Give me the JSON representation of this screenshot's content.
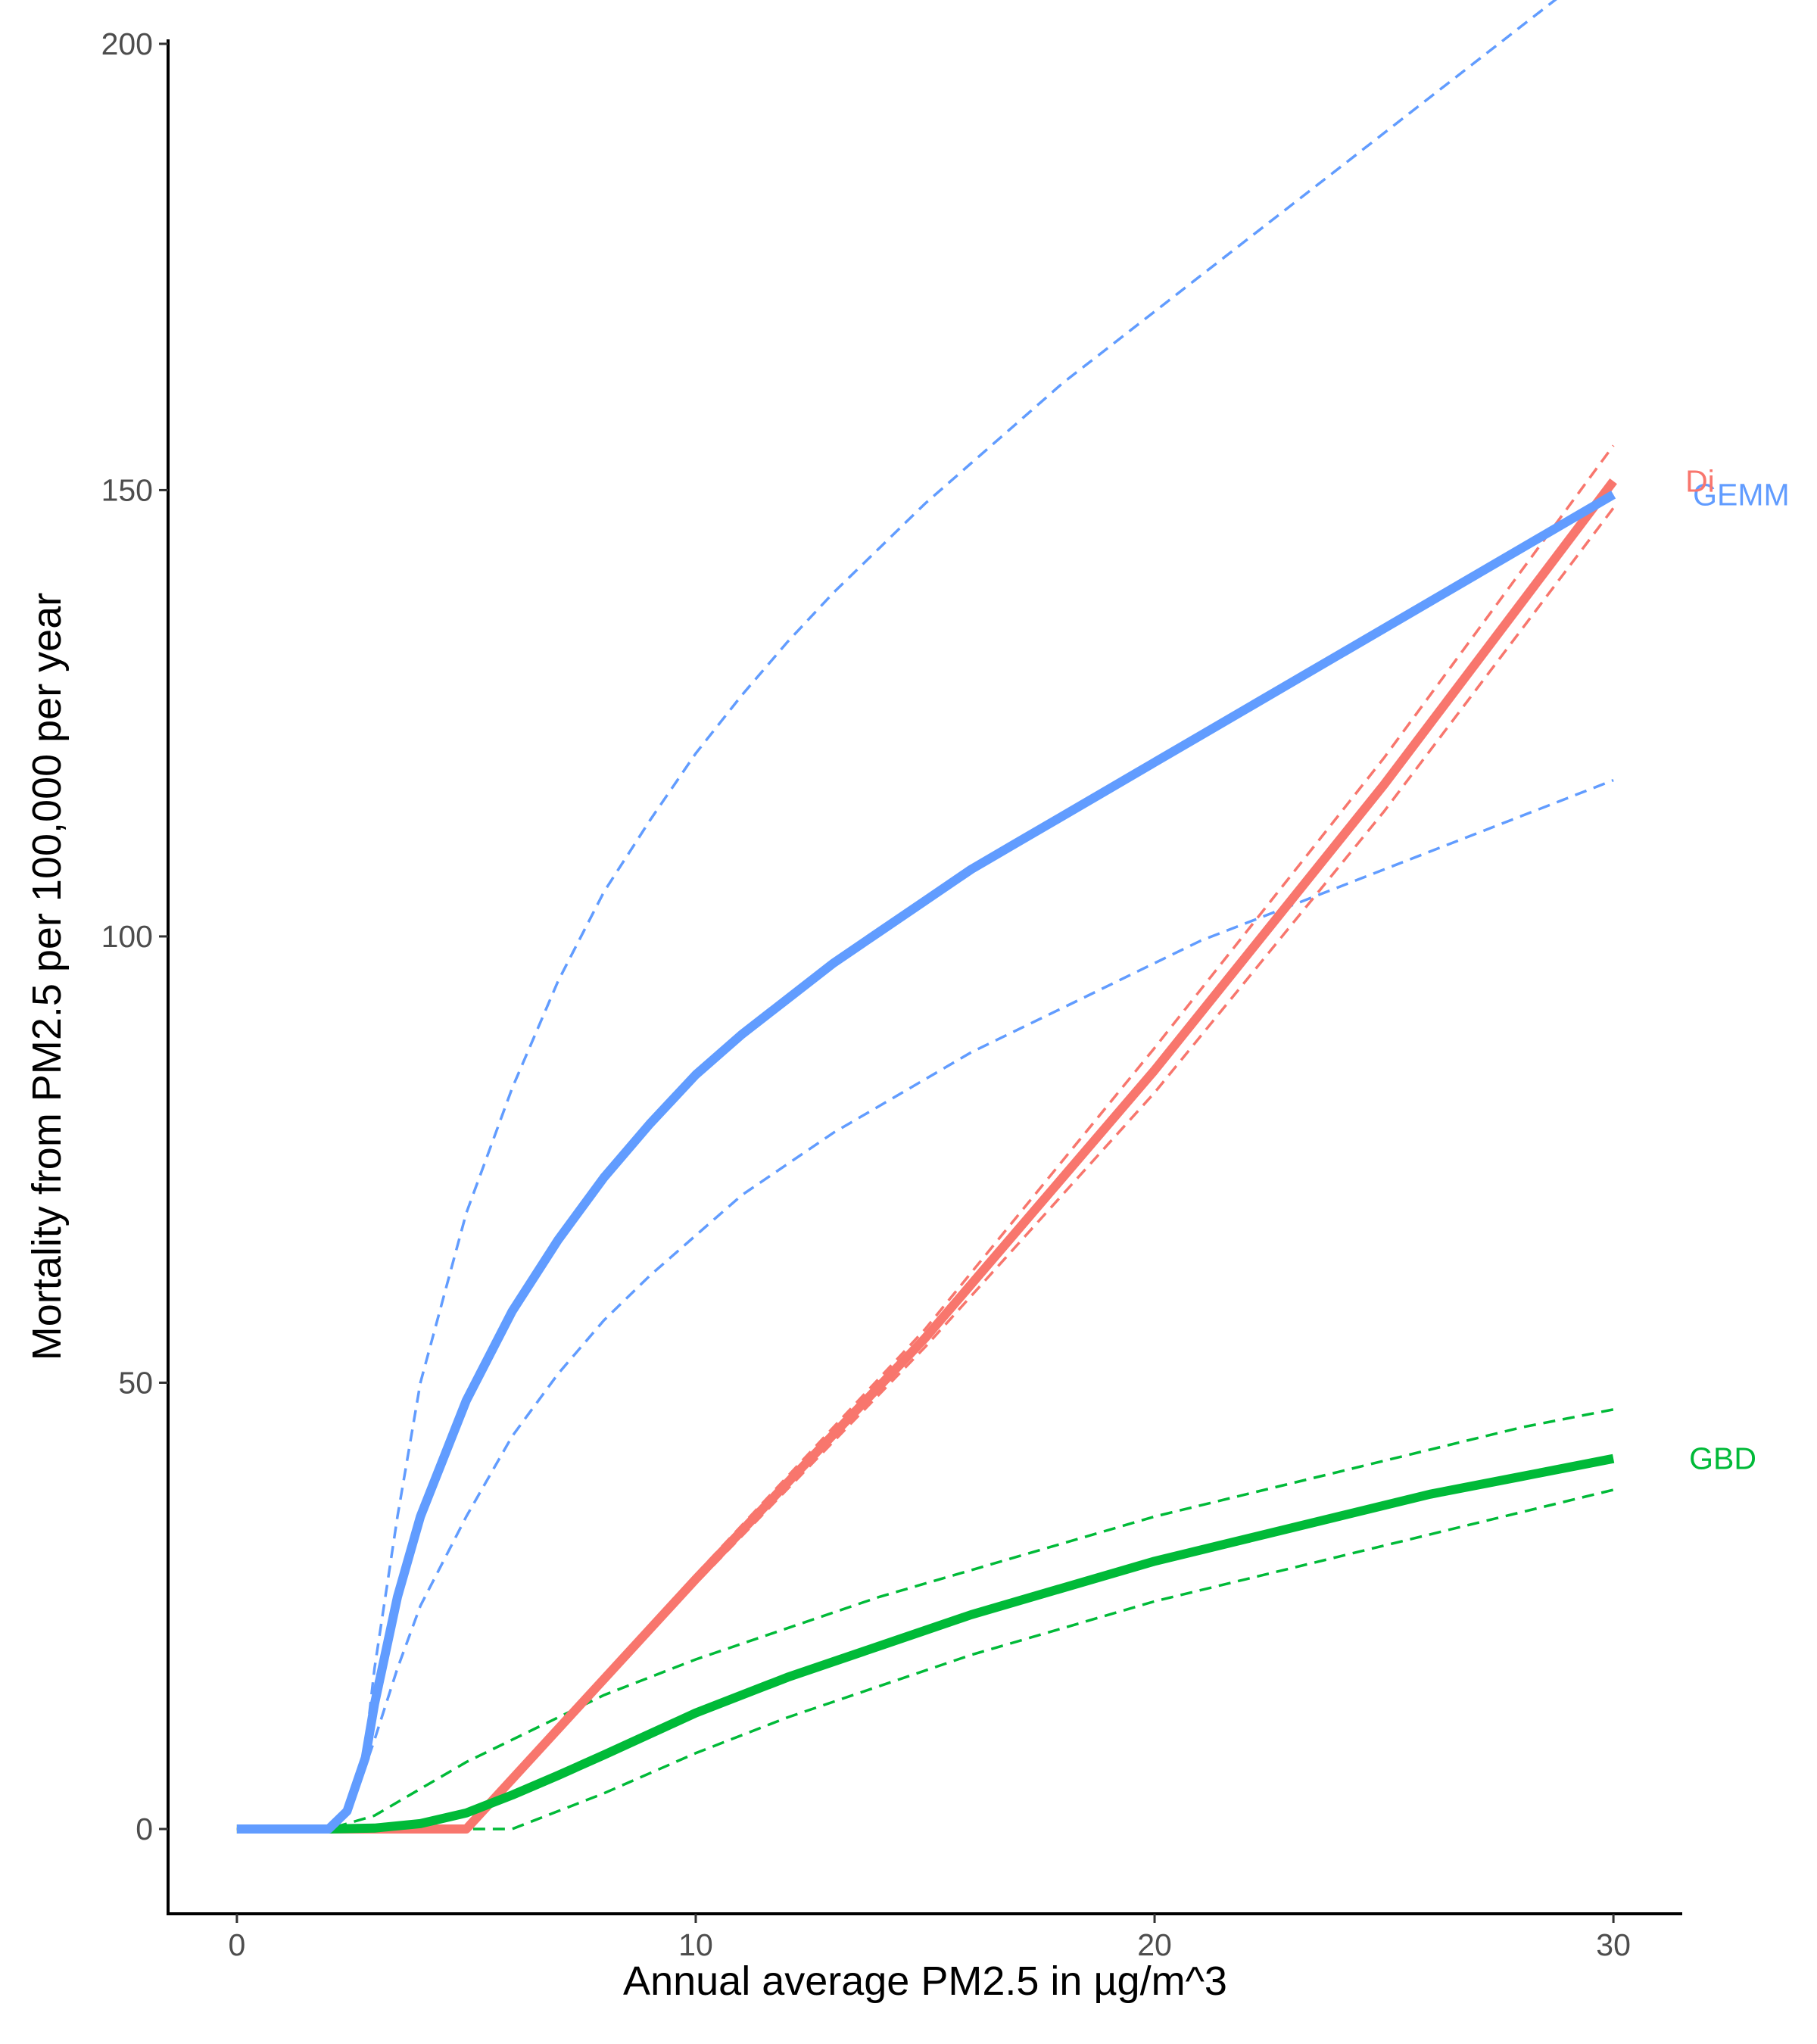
{
  "chart_data": {
    "type": "line",
    "xlabel": "Annual average PM2.5 in µg/m^3",
    "ylabel": "Mortality from PM2.5 per 100,000 per year",
    "xlim": [
      -1.5,
      31.5
    ],
    "ylim": [
      -9.5,
      200.5
    ],
    "x_ticks": [
      0,
      10,
      20,
      30
    ],
    "y_ticks": [
      0,
      50,
      100,
      150,
      200
    ],
    "grid": false,
    "legend": "direct labels at right end of lines",
    "series": [
      {
        "name": "GEMM",
        "color": "#619CFF",
        "x": [
          0,
          1,
          2,
          2.4,
          2.8,
          3,
          3.5,
          4,
          5,
          6,
          7,
          8,
          9,
          10,
          11,
          12,
          13,
          14,
          15,
          16,
          17,
          18,
          19,
          20,
          21,
          22,
          23,
          24,
          25,
          26,
          27,
          28,
          29,
          30
        ],
        "y": [
          0,
          0,
          0,
          2,
          8,
          14,
          26,
          35,
          48,
          58,
          66,
          73,
          79,
          84.5,
          89,
          93,
          97,
          100.5,
          104,
          107.5,
          110.5,
          113.5,
          116.5,
          119.5,
          122.5,
          125.5,
          128.5,
          131.5,
          134.5,
          137.5,
          140.5,
          143.5,
          146.5,
          149.5
        ],
        "lower": [
          0,
          0,
          0,
          1.5,
          7,
          10,
          18,
          25,
          35,
          44,
          51,
          57,
          62,
          66.5,
          71,
          74.5,
          78,
          81,
          84,
          87,
          89.5,
          92,
          94.5,
          97,
          99.5,
          101.5,
          103.5,
          105.5,
          107.5,
          109.5,
          111.5,
          113.5,
          115.5,
          117.5
        ],
        "upper": [
          0,
          0,
          0,
          2.5,
          9,
          18,
          35,
          50,
          69,
          83,
          95,
          105,
          113,
          120.5,
          127,
          133,
          138.5,
          143.5,
          148.5,
          153,
          157.5,
          162,
          166,
          170,
          174,
          178,
          182,
          186,
          190,
          194,
          198,
          202,
          206,
          210
        ]
      },
      {
        "name": "Di",
        "color": "#F8766D",
        "x": [
          0,
          1,
          2,
          3,
          4,
          5,
          10,
          15,
          20,
          25,
          30
        ],
        "y": [
          0,
          0,
          0,
          0,
          0,
          0,
          28,
          55,
          85,
          117,
          151
        ],
        "lower": [
          0,
          0,
          0,
          0,
          0,
          0,
          27.5,
          54,
          82.5,
          114,
          148
        ],
        "upper": [
          0,
          0,
          0,
          0,
          0,
          0,
          28.5,
          56,
          87.5,
          120,
          155
        ]
      },
      {
        "name": "GBD",
        "color": "#00BA38",
        "x": [
          0,
          1,
          2,
          3,
          4,
          5,
          6,
          7,
          8,
          10,
          12,
          14,
          16,
          18,
          20,
          22,
          24,
          26,
          28,
          30
        ],
        "y": [
          0,
          0,
          0,
          0.1,
          0.6,
          1.8,
          3.8,
          6,
          8.3,
          13,
          17,
          20.5,
          24,
          27,
          30,
          32.5,
          35,
          37.5,
          39.5,
          41.5
        ],
        "lower": [
          0,
          0,
          0,
          0,
          0,
          0,
          0,
          2,
          4,
          8.5,
          12.5,
          16,
          19.5,
          22.5,
          25.5,
          28,
          30.5,
          33,
          35.5,
          38
        ],
        "upper": [
          0,
          0,
          0,
          1.5,
          4.5,
          7.5,
          10,
          12.5,
          15,
          19,
          22.5,
          26,
          29,
          32,
          35,
          37.5,
          40,
          42.5,
          45,
          47
        ]
      }
    ]
  }
}
